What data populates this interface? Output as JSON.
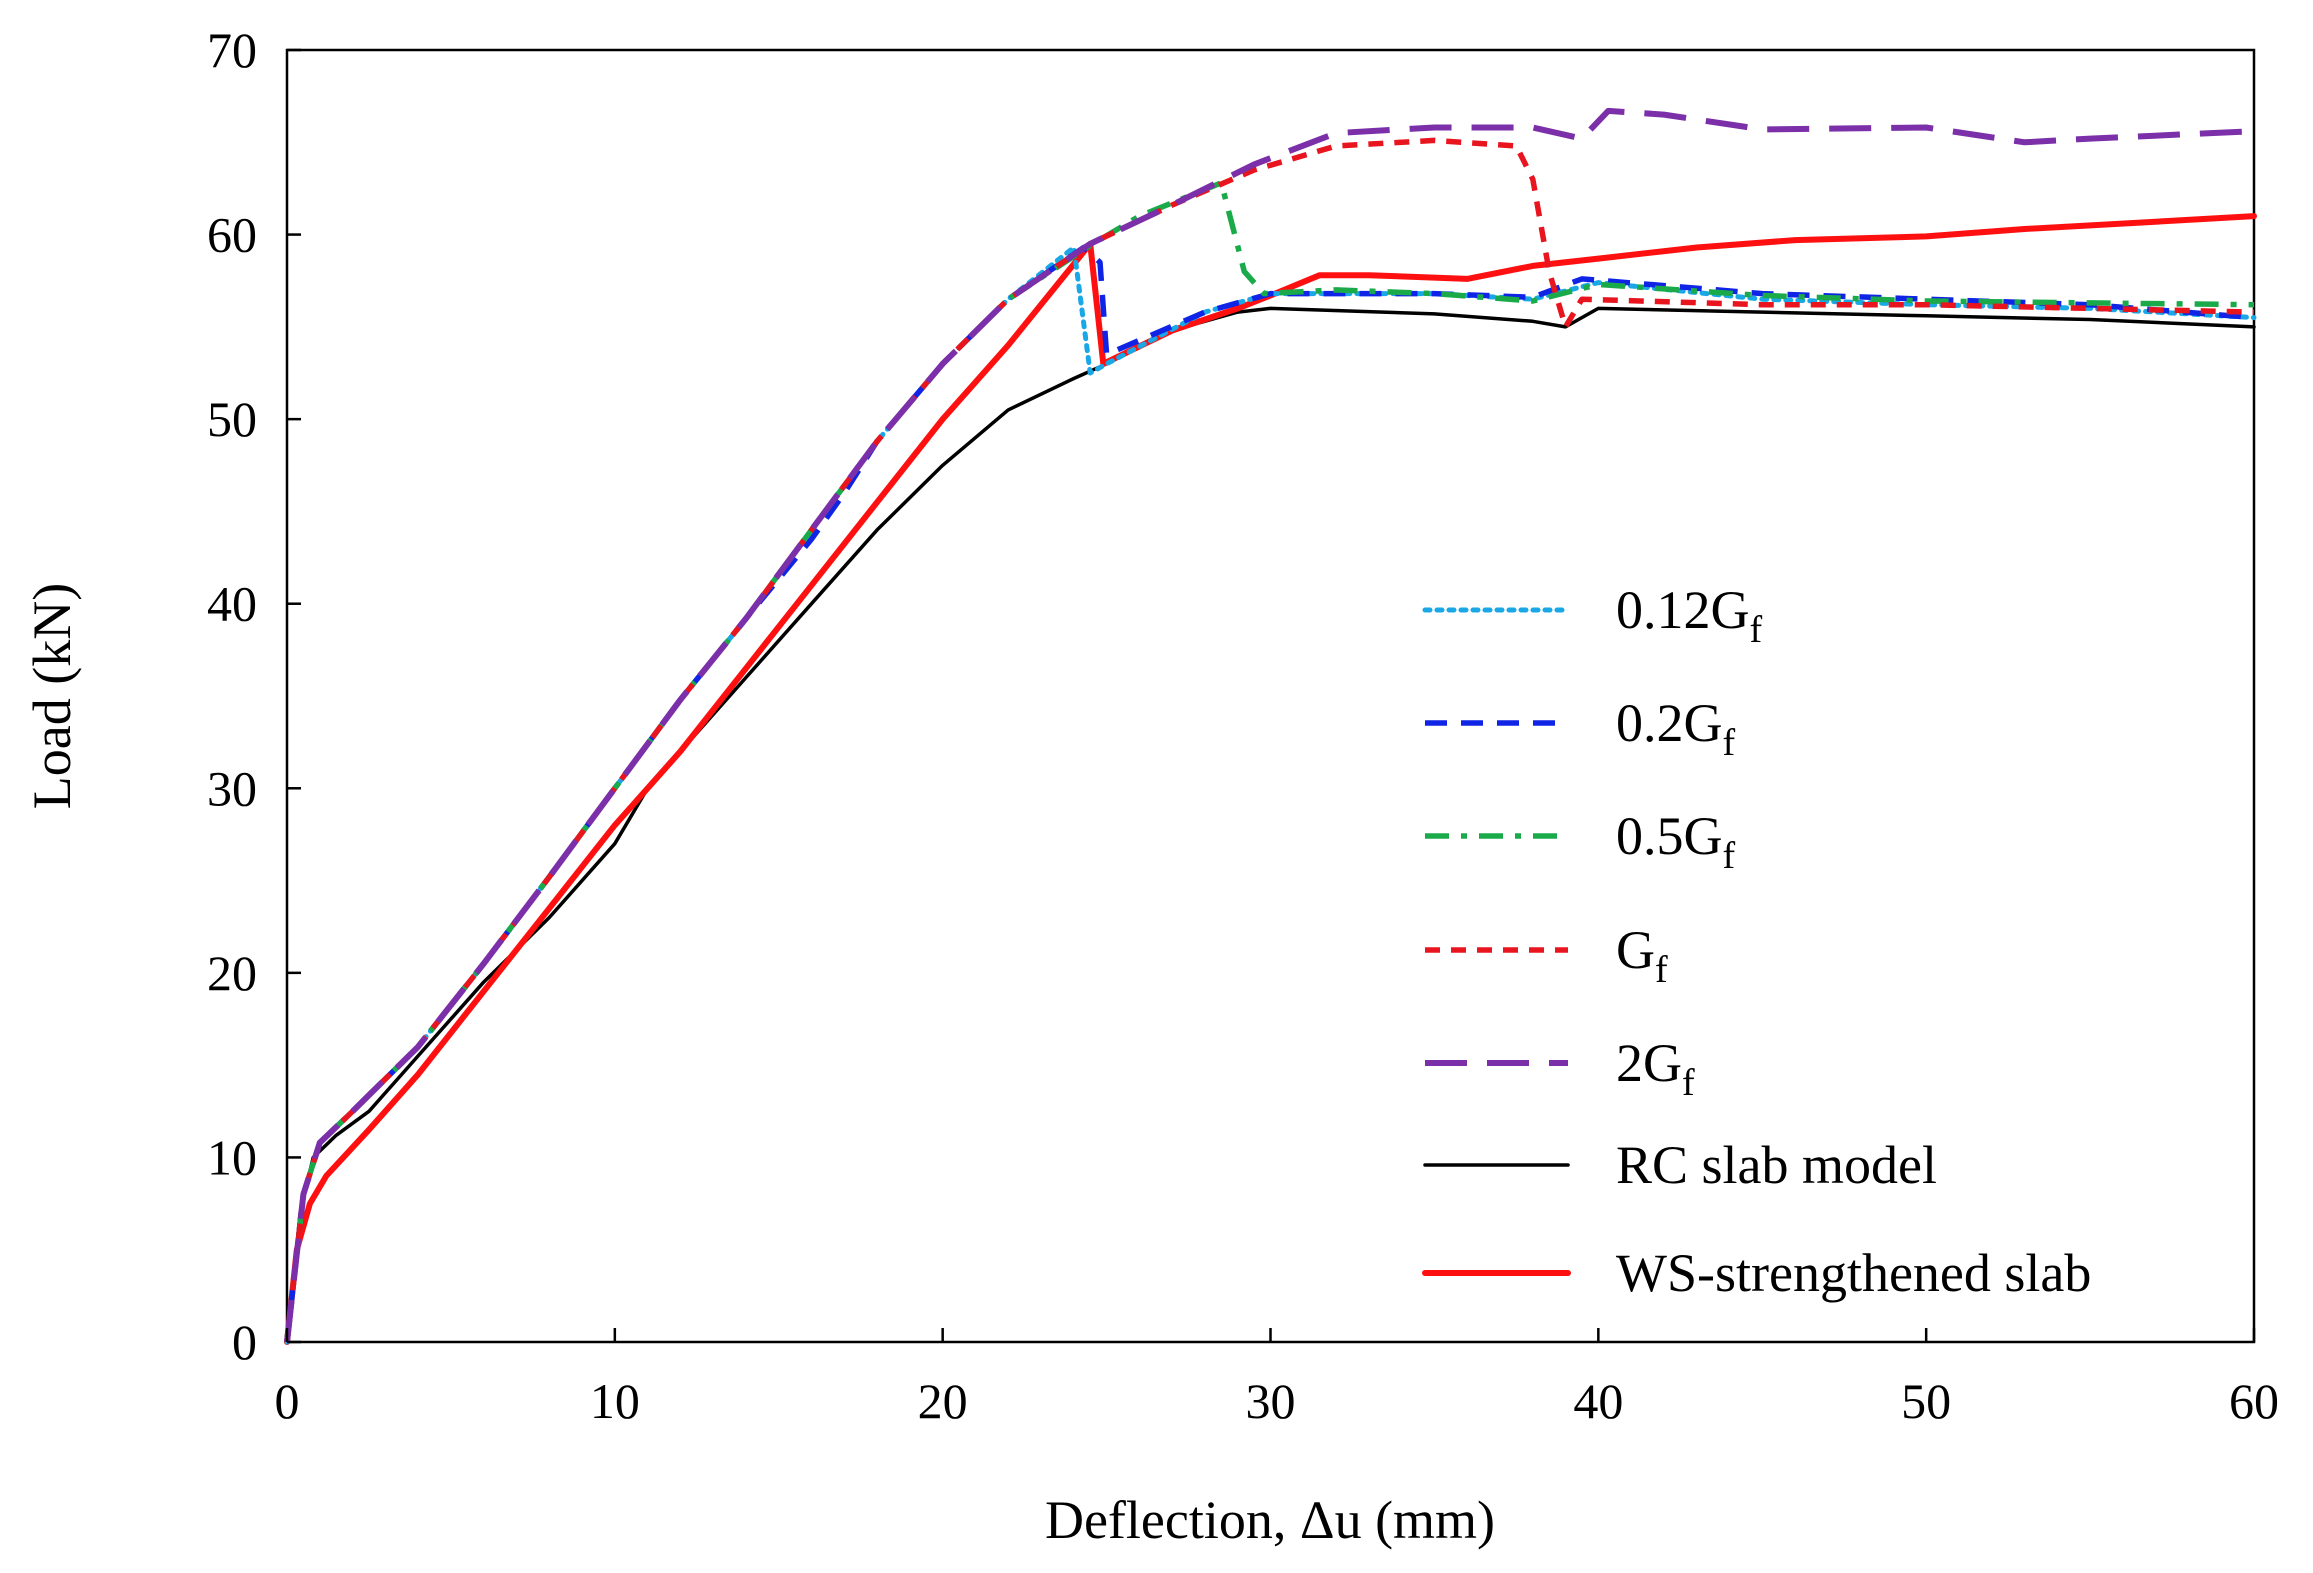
{
  "chart_data": {
    "type": "line",
    "title": "",
    "xlabel": "Deflection, Δu (mm)",
    "ylabel": "Load (kN)",
    "xlim": [
      0,
      60
    ],
    "ylim": [
      0,
      70
    ],
    "xticks": [
      "0",
      "10",
      "20",
      "30",
      "40",
      "50",
      "60"
    ],
    "yticks": [
      "0",
      "10",
      "20",
      "30",
      "40",
      "50",
      "60",
      "70"
    ],
    "grid": false,
    "legend_position": "right-middle",
    "series": [
      {
        "name": "0.12G",
        "subscript": "f",
        "color": "#1aa7e6",
        "style": "dotted",
        "points": [
          [
            0,
            0
          ],
          [
            0.5,
            8
          ],
          [
            1,
            10.8
          ],
          [
            2,
            12.5
          ],
          [
            4,
            16
          ],
          [
            6,
            20.5
          ],
          [
            8,
            25.2
          ],
          [
            10,
            30
          ],
          [
            12,
            34.8
          ],
          [
            14,
            39.2
          ],
          [
            16,
            44
          ],
          [
            18,
            48.8
          ],
          [
            20,
            53
          ],
          [
            22,
            56.5
          ],
          [
            24,
            59.3
          ],
          [
            24.5,
            52.5
          ],
          [
            25,
            53
          ],
          [
            28,
            55.8
          ],
          [
            30,
            56.8
          ],
          [
            35,
            56.8
          ],
          [
            38,
            56.5
          ],
          [
            40,
            57.4
          ],
          [
            45,
            56.5
          ],
          [
            50,
            56.2
          ],
          [
            55,
            56
          ],
          [
            60,
            55.5
          ]
        ]
      },
      {
        "name": "0.2G",
        "subscript": "f",
        "color": "#1024e6",
        "style": "dashed",
        "points": [
          [
            0,
            0
          ],
          [
            0.5,
            8
          ],
          [
            1,
            10.8
          ],
          [
            2,
            12.5
          ],
          [
            4,
            16
          ],
          [
            6,
            20.5
          ],
          [
            8,
            25.2
          ],
          [
            10,
            30
          ],
          [
            12,
            34.8
          ],
          [
            14,
            39.2
          ],
          [
            16,
            43.5
          ],
          [
            17,
            46
          ],
          [
            18,
            48.8
          ],
          [
            20,
            53
          ],
          [
            22,
            56.5
          ],
          [
            24.3,
            59.3
          ],
          [
            24.8,
            58.5
          ],
          [
            25,
            53.5
          ],
          [
            28,
            55.8
          ],
          [
            30,
            56.8
          ],
          [
            35,
            56.8
          ],
          [
            38,
            56.6
          ],
          [
            39.5,
            57.6
          ],
          [
            45,
            56.8
          ],
          [
            50,
            56.5
          ],
          [
            55,
            56.2
          ],
          [
            60,
            55.5
          ]
        ]
      },
      {
        "name": "0.5G",
        "subscript": "f",
        "color": "#1aaa4a",
        "style": "dashdot",
        "points": [
          [
            0,
            0
          ],
          [
            0.5,
            8
          ],
          [
            1,
            10.8
          ],
          [
            2,
            12.5
          ],
          [
            4,
            16
          ],
          [
            6,
            20.5
          ],
          [
            8,
            25.2
          ],
          [
            10,
            30
          ],
          [
            12,
            34.8
          ],
          [
            14,
            39.2
          ],
          [
            16,
            44
          ],
          [
            18,
            48.8
          ],
          [
            20,
            53
          ],
          [
            22,
            56.5
          ],
          [
            24.5,
            59.4
          ],
          [
            26,
            61
          ],
          [
            28.5,
            62.8
          ],
          [
            29.2,
            58
          ],
          [
            29.8,
            56.8
          ],
          [
            32,
            57
          ],
          [
            35,
            56.8
          ],
          [
            38,
            56.4
          ],
          [
            40,
            57.3
          ],
          [
            45,
            56.7
          ],
          [
            50,
            56.4
          ],
          [
            55,
            56.3
          ],
          [
            60,
            56.2
          ]
        ]
      },
      {
        "name": "G",
        "subscript": "f",
        "color": "#e8141e",
        "style": "dashed-short",
        "points": [
          [
            0,
            0
          ],
          [
            0.5,
            8
          ],
          [
            1,
            10.8
          ],
          [
            2,
            12.5
          ],
          [
            4,
            16
          ],
          [
            6,
            20.5
          ],
          [
            8,
            25.2
          ],
          [
            10,
            30
          ],
          [
            12,
            34.8
          ],
          [
            14,
            39.2
          ],
          [
            16,
            44
          ],
          [
            18,
            48.8
          ],
          [
            20,
            53
          ],
          [
            22,
            56.5
          ],
          [
            24.5,
            59.5
          ],
          [
            27,
            61.6
          ],
          [
            29.5,
            63.5
          ],
          [
            32,
            64.8
          ],
          [
            35,
            65.1
          ],
          [
            37.5,
            64.8
          ],
          [
            38,
            63
          ],
          [
            38.5,
            58
          ],
          [
            39,
            55
          ],
          [
            39.5,
            56.5
          ],
          [
            45,
            56.2
          ],
          [
            50,
            56.2
          ],
          [
            55,
            56
          ],
          [
            60,
            55.8
          ]
        ]
      },
      {
        "name": "2G",
        "subscript": "f",
        "color": "#7b2fa8",
        "style": "longdash",
        "points": [
          [
            0,
            0
          ],
          [
            0.5,
            8
          ],
          [
            1,
            10.8
          ],
          [
            2,
            12.5
          ],
          [
            4,
            16
          ],
          [
            6,
            20.5
          ],
          [
            8,
            25.2
          ],
          [
            10,
            30
          ],
          [
            12,
            34.8
          ],
          [
            14,
            39.2
          ],
          [
            16,
            44
          ],
          [
            18,
            48.8
          ],
          [
            20,
            53
          ],
          [
            22,
            56.5
          ],
          [
            24.5,
            59.5
          ],
          [
            27,
            61.6
          ],
          [
            29.5,
            63.8
          ],
          [
            32,
            65.5
          ],
          [
            35,
            65.8
          ],
          [
            38,
            65.8
          ],
          [
            39.5,
            65.2
          ],
          [
            40.3,
            66.7
          ],
          [
            42,
            66.5
          ],
          [
            45,
            65.7
          ],
          [
            50,
            65.8
          ],
          [
            53,
            65
          ],
          [
            55,
            65.2
          ],
          [
            60,
            65.6
          ]
        ]
      },
      {
        "name": "RC slab model",
        "subscript": "",
        "color": "#000000",
        "style": "solid-thin",
        "points": [
          [
            0,
            0
          ],
          [
            0.4,
            7
          ],
          [
            0.8,
            10
          ],
          [
            1.5,
            11.2
          ],
          [
            2.5,
            12.5
          ],
          [
            4,
            15.5
          ],
          [
            6,
            19.5
          ],
          [
            8,
            23
          ],
          [
            10,
            27
          ],
          [
            11,
            30
          ],
          [
            12,
            32
          ],
          [
            14,
            36
          ],
          [
            16,
            40
          ],
          [
            18,
            44
          ],
          [
            20,
            47.5
          ],
          [
            22,
            50.5
          ],
          [
            24,
            52.2
          ],
          [
            25,
            53
          ],
          [
            27,
            54.8
          ],
          [
            29,
            55.8
          ],
          [
            30,
            56
          ],
          [
            35,
            55.7
          ],
          [
            38,
            55.3
          ],
          [
            39,
            55
          ],
          [
            40,
            56
          ],
          [
            45,
            55.8
          ],
          [
            50,
            55.6
          ],
          [
            55,
            55.4
          ],
          [
            60,
            55
          ]
        ]
      },
      {
        "name": "WS-strengthened slab",
        "subscript": "",
        "color": "#ff1010",
        "style": "solid-thick",
        "points": [
          [
            0,
            0
          ],
          [
            0.3,
            5
          ],
          [
            0.7,
            7.5
          ],
          [
            1.2,
            9
          ],
          [
            2.5,
            11.5
          ],
          [
            4,
            14.5
          ],
          [
            6,
            19
          ],
          [
            8,
            23.5
          ],
          [
            10,
            28
          ],
          [
            12,
            32
          ],
          [
            14,
            36.5
          ],
          [
            16,
            41
          ],
          [
            18,
            45.5
          ],
          [
            20,
            50
          ],
          [
            22,
            54
          ],
          [
            24.5,
            59.5
          ],
          [
            24.9,
            53
          ],
          [
            27,
            54.8
          ],
          [
            29,
            56
          ],
          [
            30,
            56.7
          ],
          [
            31.5,
            57.8
          ],
          [
            33,
            57.8
          ],
          [
            36,
            57.6
          ],
          [
            38,
            58.3
          ],
          [
            40,
            58.7
          ],
          [
            43,
            59.3
          ],
          [
            46,
            59.7
          ],
          [
            50,
            59.9
          ],
          [
            53,
            60.3
          ],
          [
            57,
            60.7
          ],
          [
            60,
            61
          ]
        ]
      }
    ]
  }
}
